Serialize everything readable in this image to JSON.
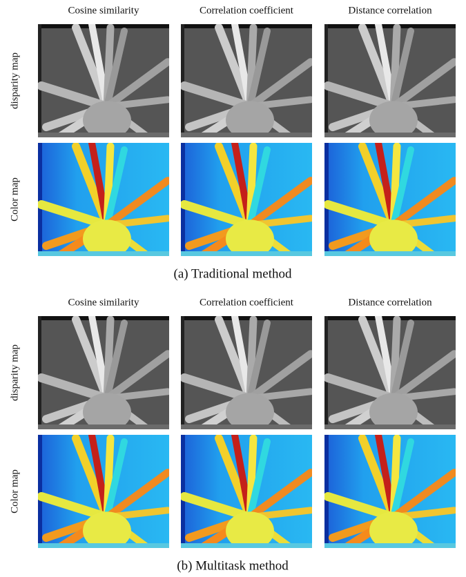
{
  "panels": [
    {
      "columns": [
        "Cosine similarity",
        "Correlation coefficient",
        "Distance correlation"
      ],
      "rows": [
        "disparity map",
        "Color map"
      ],
      "caption": "(a) Traditional method"
    },
    {
      "columns": [
        "Cosine similarity",
        "Correlation coefficient",
        "Distance correlation"
      ],
      "rows": [
        "disparity map",
        "Color map"
      ],
      "caption": "(b) Multitask method"
    }
  ]
}
